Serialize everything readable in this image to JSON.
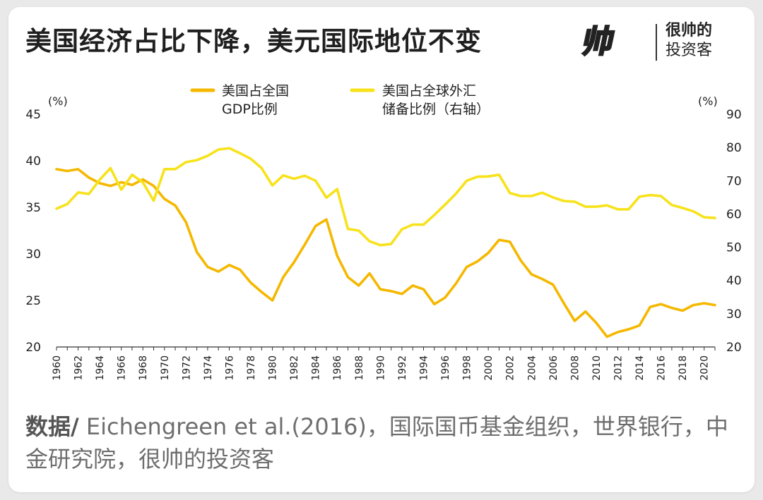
{
  "title": "美国经济占比下降，美元国际地位不变",
  "brand": {
    "line1": "很帅的",
    "line2": "投资客"
  },
  "source": {
    "label": "数据/",
    "text": " Eichengreen et al.(2016)，国际国币基金组织，世界银行，中金研究院，很帅的投资客"
  },
  "colors": {
    "gdp": "#f5b800",
    "reserve": "#f7e21b",
    "axis": "#333333"
  },
  "chart_data": {
    "type": "line",
    "left_unit": "(%)",
    "right_unit": "(%)",
    "ylim_left": [
      20,
      45
    ],
    "ylim_right": [
      20,
      90
    ],
    "yticks_left": [
      20,
      25,
      30,
      35,
      40,
      45
    ],
    "yticks_right": [
      20,
      30,
      40,
      50,
      60,
      70,
      80,
      90
    ],
    "x": [
      1960,
      1961,
      1962,
      1963,
      1964,
      1965,
      1966,
      1967,
      1968,
      1969,
      1970,
      1971,
      1972,
      1973,
      1974,
      1975,
      1976,
      1977,
      1978,
      1979,
      1980,
      1981,
      1982,
      1983,
      1984,
      1985,
      1986,
      1987,
      1988,
      1989,
      1990,
      1991,
      1992,
      1993,
      1994,
      1995,
      1996,
      1997,
      1998,
      1999,
      2000,
      2001,
      2002,
      2003,
      2004,
      2005,
      2006,
      2007,
      2008,
      2009,
      2010,
      2011,
      2012,
      2013,
      2014,
      2015,
      2016,
      2017,
      2018,
      2019,
      2020,
      2021
    ],
    "xticks": [
      1960,
      1962,
      1964,
      1966,
      1968,
      1970,
      1972,
      1974,
      1976,
      1978,
      1980,
      1982,
      1984,
      1986,
      1988,
      1990,
      1992,
      1994,
      1996,
      1998,
      2000,
      2002,
      2004,
      2006,
      2008,
      2010,
      2012,
      2014,
      2016,
      2018,
      2020
    ],
    "series": [
      {
        "name": "美国占全国GDP比例",
        "axis": "left",
        "color": "#f5b800",
        "values": [
          39.1,
          38.9,
          39.1,
          38.2,
          37.6,
          37.3,
          37.7,
          37.4,
          38.0,
          37.3,
          35.9,
          35.2,
          33.4,
          30.2,
          28.6,
          28.1,
          28.8,
          28.3,
          26.9,
          25.9,
          25.0,
          27.5,
          29.1,
          31.0,
          33.0,
          33.7,
          29.8,
          27.5,
          26.6,
          27.9,
          26.2,
          26.0,
          25.7,
          26.6,
          26.2,
          24.6,
          25.3,
          26.8,
          28.6,
          29.2,
          30.1,
          31.5,
          31.3,
          29.3,
          27.8,
          27.3,
          26.7,
          24.7,
          22.8,
          23.8,
          22.6,
          21.1,
          21.6,
          21.9,
          22.3,
          24.3,
          24.6,
          24.2,
          23.9,
          24.5,
          24.7,
          24.5
        ]
      },
      {
        "name": "美国占全球外汇储备比例（右轴）",
        "axis": "right",
        "color": "#f7e21b",
        "values": [
          61.6,
          63.0,
          66.5,
          66.0,
          70.3,
          73.8,
          67.3,
          71.8,
          69.5,
          64.0,
          73.5,
          73.5,
          75.6,
          76.2,
          77.5,
          79.4,
          79.8,
          78.3,
          76.6,
          73.8,
          68.6,
          71.6,
          70.6,
          71.5,
          70.0,
          64.9,
          67.5,
          55.5,
          55.0,
          51.8,
          50.6,
          51.0,
          55.4,
          56.8,
          56.8,
          59.7,
          62.8,
          66.1,
          70.0,
          71.2,
          71.3,
          71.8,
          66.3,
          65.4,
          65.4,
          66.4,
          65.0,
          63.9,
          63.7,
          62.2,
          62.2,
          62.6,
          61.4,
          61.4,
          65.2,
          65.7,
          65.4,
          62.7,
          61.8,
          60.8,
          59.0,
          58.8
        ]
      }
    ],
    "legend_position": "top"
  }
}
